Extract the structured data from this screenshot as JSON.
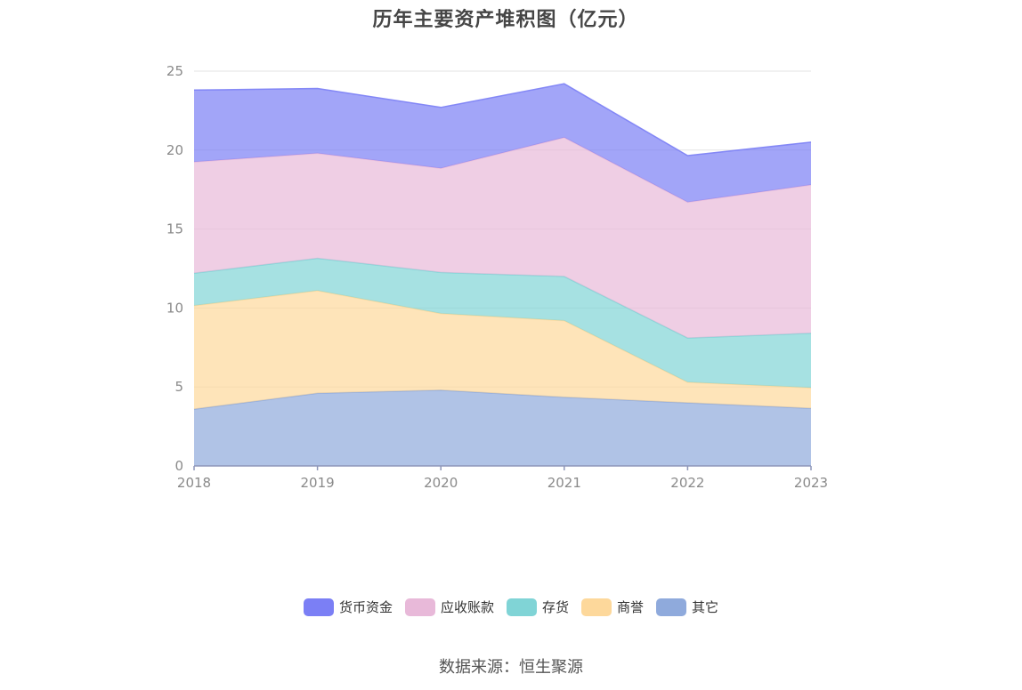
{
  "chart_data": {
    "type": "area",
    "stacked": true,
    "title": "历年主要资产堆积图（亿元）",
    "x": [
      "2018",
      "2019",
      "2020",
      "2021",
      "2022",
      "2023"
    ],
    "ylim": [
      0,
      25
    ],
    "yticks": [
      "0",
      "5",
      "10",
      "15",
      "20",
      "25"
    ],
    "grid": true,
    "legend_position": "bottom",
    "series": [
      {
        "name": "其它",
        "color": "#8faadc",
        "values": [
          3.6,
          4.6,
          4.8,
          4.35,
          4.0,
          3.65
        ]
      },
      {
        "name": "商誉",
        "color": "#fdd89b",
        "values": [
          6.55,
          6.5,
          4.85,
          4.85,
          1.3,
          1.3
        ]
      },
      {
        "name": "存货",
        "color": "#80d4d6",
        "values": [
          2.05,
          2.05,
          2.6,
          2.8,
          2.8,
          3.45
        ]
      },
      {
        "name": "应收账款",
        "color": "#e8b9d9",
        "values": [
          7.05,
          6.65,
          6.6,
          8.8,
          8.6,
          9.4
        ]
      },
      {
        "name": "货币资金",
        "color": "#7b7ff5",
        "values": [
          4.55,
          4.1,
          3.85,
          3.4,
          2.95,
          2.7
        ]
      }
    ]
  },
  "legend_items": [
    {
      "label": "货币资金",
      "color": "#7b7ff5"
    },
    {
      "label": "应收账款",
      "color": "#e8b9d9"
    },
    {
      "label": "存货",
      "color": "#80d4d6"
    },
    {
      "label": "商誉",
      "color": "#fdd89b"
    },
    {
      "label": "其它",
      "color": "#8faadc"
    }
  ],
  "source_note": "数据来源：恒生聚源"
}
